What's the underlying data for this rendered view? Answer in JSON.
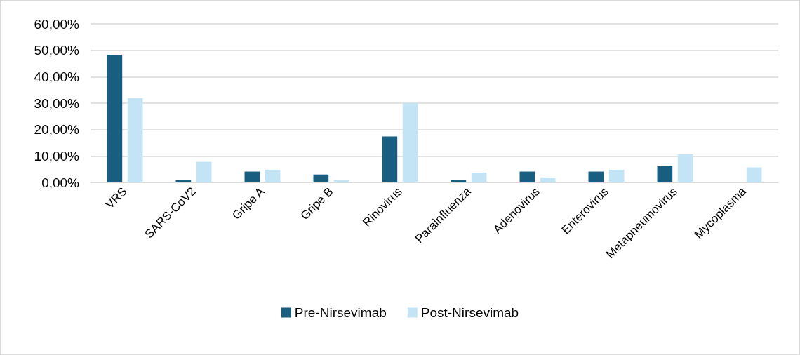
{
  "chart_data": {
    "type": "bar",
    "categories": [
      "VRS",
      "SARS-CoV2",
      "Gripe A",
      "Gripe B",
      "Rinovirus",
      "Parainfluenza",
      "Adenovirus",
      "Enterovirus",
      "Metapneumovirus",
      "Mycoplasma"
    ],
    "series": [
      {
        "name": "Pre-Nirsevimab",
        "color": "#175e80",
        "values": [
          48.3,
          0.9,
          4.1,
          3.0,
          17.4,
          0.9,
          4.1,
          4.1,
          6.1,
          0
        ]
      },
      {
        "name": "Post-Nirsevimab",
        "color": "#c2e4f4",
        "values": [
          31.9,
          7.8,
          4.8,
          0.9,
          30.0,
          3.7,
          1.9,
          4.8,
          10.6,
          5.7
        ]
      }
    ],
    "ylim": [
      0,
      60
    ],
    "yticks": [
      {
        "value": 0,
        "label": "0,00%"
      },
      {
        "value": 10,
        "label": "10,00%"
      },
      {
        "value": 20,
        "label": "20,00%"
      },
      {
        "value": 30,
        "label": "30,00%"
      },
      {
        "value": 40,
        "label": "40,00%"
      },
      {
        "value": 50,
        "label": "50,00%"
      },
      {
        "value": 60,
        "label": "60,00%"
      }
    ],
    "grid": "y",
    "legend": "bottom"
  }
}
